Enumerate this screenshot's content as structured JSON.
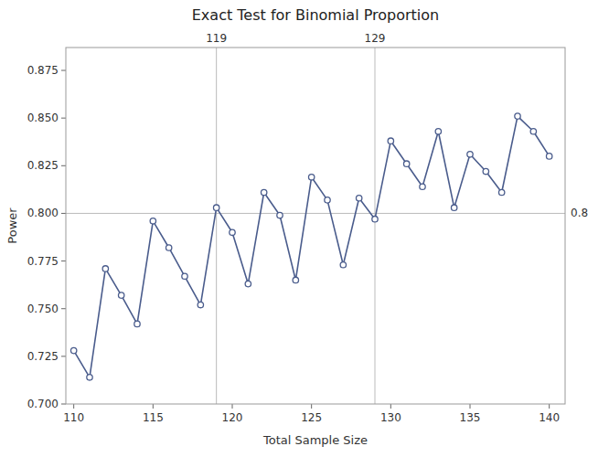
{
  "chart_data": {
    "type": "line",
    "title": "Exact Test for Binomial Proportion",
    "xlabel": "Total Sample Size",
    "ylabel": "Power",
    "x": [
      110,
      111,
      112,
      113,
      114,
      115,
      116,
      117,
      118,
      119,
      120,
      121,
      122,
      123,
      124,
      125,
      126,
      127,
      128,
      129,
      130,
      131,
      132,
      133,
      134,
      135,
      136,
      137,
      138,
      139,
      140
    ],
    "values": [
      0.728,
      0.714,
      0.771,
      0.757,
      0.742,
      0.796,
      0.782,
      0.767,
      0.752,
      0.803,
      0.79,
      0.763,
      0.811,
      0.799,
      0.765,
      0.819,
      0.807,
      0.773,
      0.808,
      0.797,
      0.838,
      0.826,
      0.814,
      0.843,
      0.803,
      0.831,
      0.822,
      0.811,
      0.851,
      0.843,
      0.83
    ],
    "color": "#4a5c8c",
    "marker": "circle",
    "xlim": [
      109.5,
      141
    ],
    "ylim": [
      0.7,
      0.887
    ],
    "xticks": [
      110,
      115,
      120,
      125,
      130,
      135,
      140
    ],
    "yticks": [
      {
        "value": 0.7,
        "label": "0.700"
      },
      0.725,
      {
        "value": 0.75,
        "label": "0.750"
      },
      0.775,
      {
        "value": 0.8,
        "label": "0.800"
      },
      0.825,
      {
        "value": 0.85,
        "label": "0.850"
      },
      0.875
    ],
    "reference_lines": [
      {
        "axis": "y",
        "value": 0.8,
        "label": "0.8"
      },
      {
        "axis": "x",
        "value": 119,
        "label": "119"
      },
      {
        "axis": "x",
        "value": 129,
        "label": "129"
      }
    ],
    "grid": false
  }
}
